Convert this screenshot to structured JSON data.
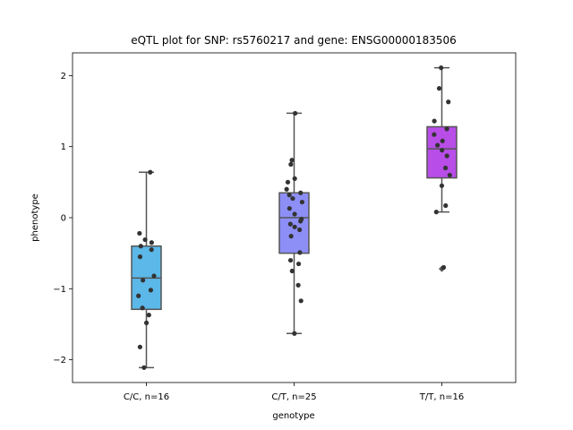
{
  "chart_data": {
    "type": "box",
    "title": "eQTL plot for SNP: rs5760217 and gene: ENSG00000183506",
    "xlabel": "genotype",
    "ylabel": "phenotype",
    "ylim": [
      -2.32,
      2.32
    ],
    "yticks": [
      -2,
      -1,
      0,
      1,
      2
    ],
    "ytick_labels": [
      "−2",
      "−1",
      "0",
      "1",
      "2"
    ],
    "grid": false,
    "point_color": "#333333",
    "whisker_color": "#555555",
    "categories": [
      "C/C, n=16",
      "C/T, n=25",
      "T/T, n=16"
    ],
    "series": [
      {
        "color": "#5bb8e8",
        "box": {
          "whisker_low": -2.11,
          "q1": -1.29,
          "median": -0.85,
          "q3": -0.4,
          "whisker_high": 0.64
        },
        "points": [
          0.64,
          -0.22,
          -0.31,
          -0.35,
          -0.4,
          -0.45,
          -0.55,
          -0.82,
          -0.88,
          -1.02,
          -1.1,
          -1.27,
          -1.37,
          -1.48,
          -1.82,
          -2.11
        ]
      },
      {
        "color": "#8d8ff6",
        "box": {
          "whisker_low": -1.63,
          "q1": -0.5,
          "median": 0.0,
          "q3": 0.35,
          "whisker_high": 1.47
        },
        "points": [
          1.47,
          0.81,
          0.75,
          0.55,
          0.5,
          0.4,
          0.35,
          0.32,
          0.27,
          0.22,
          0.13,
          0.05,
          -0.02,
          -0.05,
          -0.09,
          -0.13,
          -0.17,
          -0.26,
          -0.49,
          -0.6,
          -0.65,
          -0.75,
          -0.95,
          -1.17,
          -1.63
        ]
      },
      {
        "color": "#b84de8",
        "box": {
          "whisker_low": 0.08,
          "q1": 0.56,
          "median": 0.97,
          "q3": 1.28,
          "whisker_high": 2.11
        },
        "points": [
          2.11,
          1.82,
          1.63,
          1.36,
          1.25,
          1.17,
          1.08,
          1.02,
          0.95,
          0.87,
          0.7,
          0.6,
          0.45,
          0.17,
          0.08,
          -0.7
        ],
        "outliers": [
          -0.72
        ]
      }
    ]
  }
}
